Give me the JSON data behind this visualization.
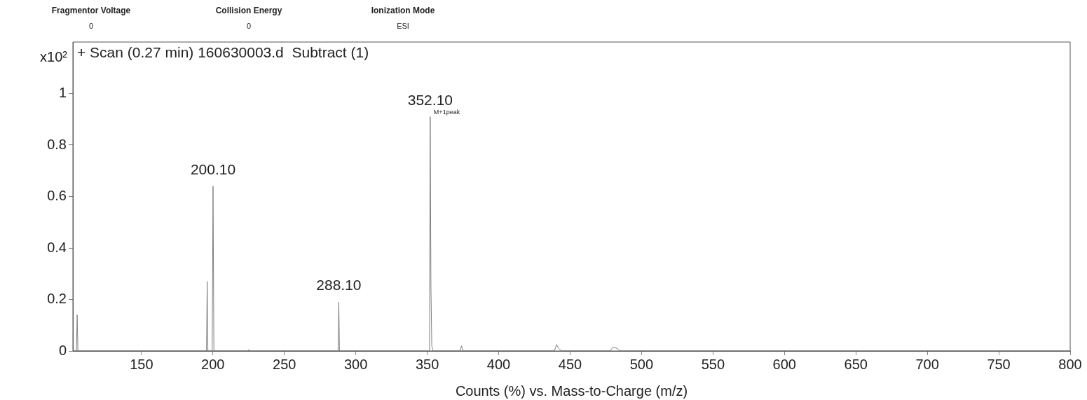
{
  "chart_data": {
    "type": "line",
    "title": "+ Scan (0.27 min) 160630003.d  Subtract (1)",
    "xlabel": "Counts (%) vs. Mass-to-Charge (m/z)",
    "ylabel": "x10²",
    "annotations": [
      "Fragmentor Voltage",
      "0",
      "Collision Energy",
      "0",
      "Ionization Mode",
      "ESI",
      {
        "text": "200.10",
        "x": 200.1,
        "y": 0.64
      },
      {
        "text": "288.10",
        "x": 288.1,
        "y": 0.19
      },
      {
        "text": "352.10",
        "x": 352.1,
        "y": 0.91
      },
      {
        "text": "M+1peak",
        "x": 352.1,
        "y": 0.91
      }
    ],
    "x": [
      102,
      104.5,
      105,
      105.5,
      107,
      193,
      195.5,
      196,
      196.5,
      198,
      199.5,
      200.1,
      200.7,
      202,
      224.5,
      225,
      225.5,
      286,
      287.6,
      288.1,
      288.6,
      290,
      350,
      351.6,
      352.1,
      352.6,
      353.2,
      354,
      373,
      374,
      375,
      439,
      440.5,
      442,
      444,
      478,
      480,
      483,
      485,
      800
    ],
    "series": [
      {
        "color": "#808080",
        "values": [
          0,
          0,
          0.14,
          0,
          0,
          0,
          0,
          0.27,
          0,
          0,
          0,
          0.64,
          0,
          0,
          0,
          0.005,
          0,
          0,
          0,
          0.19,
          0,
          0,
          0,
          0,
          0.91,
          0.25,
          0.02,
          0,
          0,
          0.02,
          0,
          0,
          0.025,
          0.01,
          0,
          0,
          0.015,
          0.01,
          0,
          0
        ]
      }
    ],
    "xlim": [
      102,
      800
    ],
    "xticks": [
      150,
      200,
      250,
      300,
      350,
      400,
      450,
      500,
      550,
      600,
      650,
      700,
      750,
      800
    ],
    "ylim": [
      0,
      1.2
    ],
    "yticks": [
      0,
      0.2,
      0.4,
      0.6,
      0.8,
      1
    ],
    "marker": "none"
  }
}
